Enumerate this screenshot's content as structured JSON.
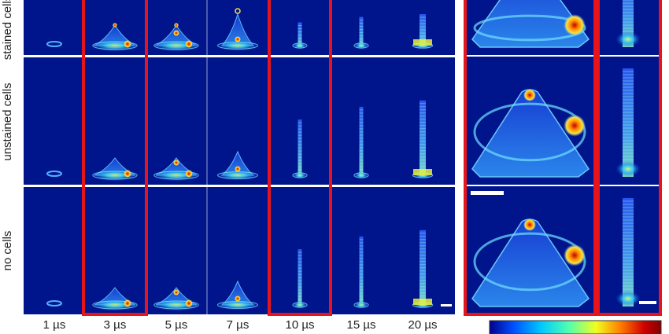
{
  "figure": {
    "row_labels": [
      "stained cells",
      "unstained cells",
      "no cells"
    ],
    "time_labels": [
      "1 µs",
      "3 µs",
      "5 µs",
      "7 µs",
      "10 µs",
      "15 µs",
      "20 µs"
    ],
    "highlight_color": "#e8141c",
    "panel_background": "#00148c",
    "colorbar_colors": [
      "#00008c",
      "#0050ff",
      "#00c8ff",
      "#50ffb0",
      "#f0ff20",
      "#ff8000",
      "#d00000",
      "#800000"
    ]
  }
}
